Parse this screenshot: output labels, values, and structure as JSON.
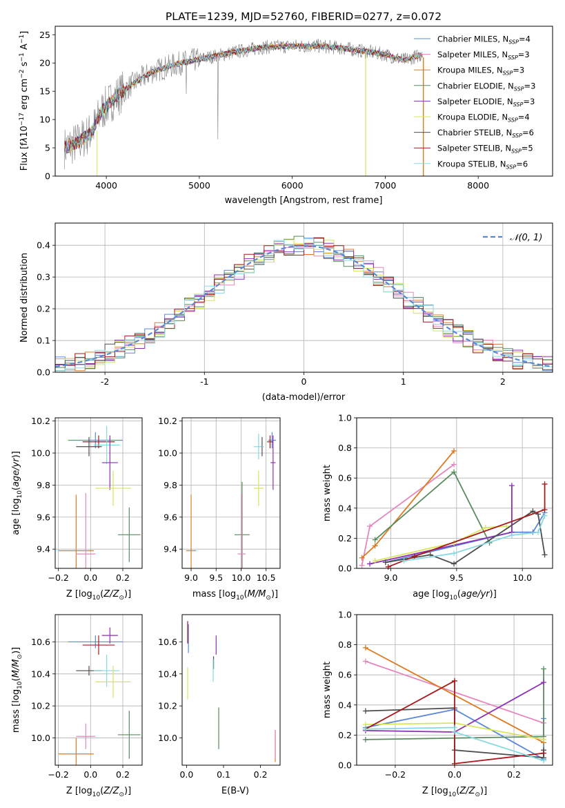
{
  "figure_title": "PLATE=1239, MJD=52760, FIBERID=0277, z=0.072",
  "models": [
    {
      "name": "Chabrier MILES, N",
      "sub": "SSP",
      "suffix": "=4",
      "color": "#5b88d6"
    },
    {
      "name": "Salpeter MILES, N",
      "sub": "SSP",
      "suffix": "=3",
      "color": "#e586bd"
    },
    {
      "name": "Kroupa MILES, N",
      "sub": "SSP",
      "suffix": "=3",
      "color": "#dd7a20"
    },
    {
      "name": "Chabrier ELODIE, N",
      "sub": "SSP",
      "suffix": "=3",
      "color": "#5a8a5e"
    },
    {
      "name": "Salpeter ELODIE, N",
      "sub": "SSP",
      "suffix": "=3",
      "color": "#8d2fb5"
    },
    {
      "name": "Kroupa ELODIE, N",
      "sub": "SSP",
      "suffix": "=4",
      "color": "#d6e55a"
    },
    {
      "name": "Chabrier STELIB, N",
      "sub": "SSP",
      "suffix": "=6",
      "color": "#4c4c4c"
    },
    {
      "name": "Salpeter STELIB, N",
      "sub": "SSP",
      "suffix": "=5",
      "color": "#a6191c"
    },
    {
      "name": "Kroupa STELIB, N",
      "sub": "SSP",
      "suffix": "=6",
      "color": "#86d9e0"
    }
  ],
  "chart_data": [
    {
      "id": "spectrum",
      "type": "line",
      "xlabel": "wavelength [Angstrom, rest frame]",
      "ylabel": "Flux [f",
      "xlim": [
        3450,
        8800
      ],
      "ylim": [
        0,
        26.5
      ],
      "xticks": [
        4000,
        5000,
        6000,
        7000,
        8000
      ],
      "yticks": [
        0,
        5,
        10,
        15,
        20,
        25
      ],
      "continuum": [
        [
          3550,
          5.0
        ],
        [
          3700,
          6.0
        ],
        [
          3850,
          8.0
        ],
        [
          3950,
          11.5
        ],
        [
          4100,
          14.0
        ],
        [
          4300,
          16.5
        ],
        [
          4500,
          18.5
        ],
        [
          4800,
          20.0
        ],
        [
          5100,
          21.0
        ],
        [
          5400,
          22.0
        ],
        [
          5700,
          22.8
        ],
        [
          6000,
          23.0
        ],
        [
          6300,
          23.0
        ],
        [
          6600,
          22.5
        ],
        [
          7000,
          21.5
        ],
        [
          7200,
          20.5
        ],
        [
          7400,
          21.5
        ]
      ],
      "observed_color": "#808080",
      "legend": "upper right"
    },
    {
      "id": "residuals",
      "type": "step",
      "xlabel": "(data-model)/error",
      "ylabel": "Normed distribution",
      "xlim": [
        -2.5,
        2.5
      ],
      "ylim": [
        0,
        0.47
      ],
      "xticks": [
        -2,
        -1,
        0,
        1,
        2
      ],
      "yticks": [
        0.0,
        0.1,
        0.2,
        0.3,
        0.4
      ],
      "gaussian_label": "𝒩(0, 1)",
      "gaussian_color": "#5b88d6",
      "bin_width": 0.1,
      "legend": "upper right",
      "grid": true
    },
    {
      "id": "age-vs-Z",
      "type": "errorbar",
      "xlabel": "Z [log",
      "ylabel": "age  [log",
      "xlim": [
        -0.22,
        0.32
      ],
      "ylim": [
        9.28,
        10.22
      ],
      "xticks": [
        -0.2,
        0.0,
        0.2
      ],
      "yticks": [
        9.4,
        9.6,
        9.8,
        10.0,
        10.2
      ],
      "points": [
        {
          "x": 0.03,
          "xerr": 0.17,
          "y": 10.08,
          "yerr": 0.05
        },
        {
          "x": 0.05,
          "xerr": 0.1,
          "y": 10.07,
          "yerr": 0.04
        },
        {
          "x": -0.01,
          "xerr": 0.08,
          "y": 10.04,
          "yerr": 0.06
        },
        {
          "x": 0.1,
          "xerr": 0.08,
          "y": 10.05,
          "yerr": 0.12
        },
        {
          "x": 0.12,
          "xerr": 0.05,
          "y": 9.94,
          "yerr": 0.17
        },
        {
          "x": 0.14,
          "xerr": 0.11,
          "y": 9.78,
          "yerr": 0.11
        },
        {
          "x": 0.24,
          "xerr": 0.07,
          "y": 9.49,
          "yerr": 0.17
        },
        {
          "x": -0.09,
          "xerr": 0.11,
          "y": 9.39,
          "yerr": 0.35
        },
        {
          "x": -0.03,
          "xerr": 0.06,
          "y": 9.37,
          "yerr": 0.38
        }
      ],
      "point_colors": [
        "#5b88d6",
        "#a6191c",
        "#4c4c4c",
        "#86d9e0",
        "#8d2fb5",
        "#d6e55a",
        "#5a8a5e",
        "#dd7a20",
        "#e586bd"
      ],
      "grid": true
    },
    {
      "id": "age-vs-mass",
      "type": "errorbar",
      "xlabel": "mass [log",
      "ylabel": "",
      "xlim": [
        8.82,
        10.78
      ],
      "ylim": [
        9.28,
        10.22
      ],
      "xticks": [
        9.0,
        9.5,
        10.0,
        10.5
      ],
      "yticks": [
        9.4,
        9.6,
        9.8,
        10.0,
        10.2
      ],
      "points": [
        {
          "x": 10.62,
          "xerr": 0.08,
          "y": 10.08,
          "yerr": 0.05
        },
        {
          "x": 10.58,
          "xerr": 0.06,
          "y": 10.07,
          "yerr": 0.04
        },
        {
          "x": 10.42,
          "xerr": 0.03,
          "y": 10.04,
          "yerr": 0.06
        },
        {
          "x": 10.35,
          "xerr": 0.1,
          "y": 10.04,
          "yerr": 0.08
        },
        {
          "x": 10.64,
          "xerr": 0.05,
          "y": 9.94,
          "yerr": 0.17
        },
        {
          "x": 10.35,
          "xerr": 0.1,
          "y": 9.78,
          "yerr": 0.11
        },
        {
          "x": 10.02,
          "xerr": 0.15,
          "y": 9.49,
          "yerr": 0.33
        },
        {
          "x": 9.0,
          "xerr": 0.1,
          "y": 9.39,
          "yerr": 0.35
        },
        {
          "x": 10.01,
          "xerr": 0.08,
          "y": 9.37,
          "yerr": 0.38
        }
      ],
      "point_colors": [
        "#5b88d6",
        "#a6191c",
        "#4c4c4c",
        "#86d9e0",
        "#8d2fb5",
        "#d6e55a",
        "#5a8a5e",
        "#dd7a20",
        "#e586bd"
      ],
      "grid": true
    },
    {
      "id": "weight-vs-age",
      "type": "line",
      "xlabel": "age  [log",
      "ylabel": "mass weight",
      "xlim": [
        8.74,
        10.23
      ],
      "ylim": [
        0,
        1
      ],
      "xticks": [
        9.0,
        9.5,
        10.0
      ],
      "yticks": [
        0.0,
        0.2,
        0.4,
        0.6,
        0.8,
        1.0
      ],
      "series": [
        {
          "x": [
            8.96,
            9.92,
            10.08,
            10.17
          ],
          "y": [
            0.04,
            0.24,
            0.24,
            0.37
          ]
        },
        {
          "x": [
            8.78,
            8.84,
            9.48
          ],
          "y": [
            0.02,
            0.28,
            0.69
          ]
        },
        {
          "x": [
            8.78,
            8.88,
            9.48
          ],
          "y": [
            0.07,
            0.15,
            0.78
          ]
        },
        {
          "x": [
            8.88,
            9.48,
            9.75
          ],
          "y": [
            0.19,
            0.64,
            0.17
          ]
        },
        {
          "x": [
            8.84,
            9.92,
            9.92
          ],
          "y": [
            0.03,
            0.24,
            0.55
          ]
        },
        {
          "x": [
            8.88,
            9.48,
            9.72,
            9.88
          ],
          "y": [
            0.05,
            0.17,
            0.27,
            0.28
          ]
        },
        {
          "x": [
            8.96,
            9.3,
            9.48,
            10.08,
            10.12,
            10.17
          ],
          "y": [
            0.04,
            0.09,
            0.03,
            0.38,
            0.36,
            0.09
          ]
        },
        {
          "x": [
            8.98,
            9.18,
            10.17,
            10.17
          ],
          "y": [
            0.01,
            0.08,
            0.39,
            0.56
          ]
        },
        {
          "x": [
            9.1,
            9.48,
            9.92,
            10.12,
            10.17
          ],
          "y": [
            0.05,
            0.1,
            0.22,
            0.24,
            0.35
          ]
        }
      ],
      "grid": true
    },
    {
      "id": "mass-vs-Z",
      "type": "errorbar",
      "xlabel": "Z [log",
      "ylabel": "mass [log",
      "xlim": [
        -0.22,
        0.32
      ],
      "ylim": [
        9.83,
        10.77
      ],
      "xticks": [
        -0.2,
        0.0,
        0.2
      ],
      "yticks": [
        10.0,
        10.2,
        10.4,
        10.6
      ],
      "points": [
        {
          "x": 0.03,
          "xerr": 0.17,
          "y": 10.6,
          "yerr": 0.04
        },
        {
          "x": 0.05,
          "xerr": 0.1,
          "y": 10.58,
          "yerr": 0.06
        },
        {
          "x": -0.01,
          "xerr": 0.08,
          "y": 10.42,
          "yerr": 0.03
        },
        {
          "x": 0.1,
          "xerr": 0.08,
          "y": 10.42,
          "yerr": 0.1
        },
        {
          "x": 0.12,
          "xerr": 0.05,
          "y": 10.64,
          "yerr": 0.05
        },
        {
          "x": 0.14,
          "xerr": 0.11,
          "y": 10.35,
          "yerr": 0.1
        },
        {
          "x": 0.24,
          "xerr": 0.07,
          "y": 10.02,
          "yerr": 0.15
        },
        {
          "x": -0.09,
          "xerr": 0.11,
          "y": 9.9,
          "yerr": 0.1
        },
        {
          "x": -0.03,
          "xerr": 0.06,
          "y": 10.01,
          "yerr": 0.08
        }
      ],
      "point_colors": [
        "#5b88d6",
        "#a6191c",
        "#4c4c4c",
        "#86d9e0",
        "#8d2fb5",
        "#d6e55a",
        "#5a8a5e",
        "#dd7a20",
        "#e586bd"
      ],
      "grid": true
    },
    {
      "id": "mass-vs-ebv",
      "type": "errorbar",
      "xlabel": "E(B-V)",
      "ylabel": "",
      "xlim": [
        -0.012,
        0.253
      ],
      "ylim": [
        9.83,
        10.77
      ],
      "xticks": [
        0.0,
        0.1,
        0.2
      ],
      "yticks": [
        10.0,
        10.2,
        10.4,
        10.6
      ],
      "points": [
        {
          "x": 0.005,
          "xerr": 0,
          "y": 10.62,
          "yerr": 0.09
        },
        {
          "x": 0.003,
          "xerr": 0,
          "y": 10.66,
          "yerr": 0.07
        },
        {
          "x": 0.073,
          "xerr": 0,
          "y": 10.47,
          "yerr": 0.04
        },
        {
          "x": 0.072,
          "xerr": 0,
          "y": 10.42,
          "yerr": 0.07
        },
        {
          "x": 0.08,
          "xerr": 0,
          "y": 10.58,
          "yerr": 0.06
        },
        {
          "x": 0.003,
          "xerr": 0,
          "y": 10.34,
          "yerr": 0.1
        },
        {
          "x": 0.087,
          "xerr": 0,
          "y": 10.06,
          "yerr": 0.13
        },
        {
          "x": 0.24,
          "xerr": 0,
          "y": 9.95,
          "yerr": 0.1
        },
        {
          "x": 0.24,
          "xerr": 0,
          "y": 9.96,
          "yerr": 0.09
        }
      ],
      "point_colors": [
        "#5b88d6",
        "#a6191c",
        "#4c4c4c",
        "#86d9e0",
        "#8d2fb5",
        "#d6e55a",
        "#5a8a5e",
        "#dd7a20",
        "#e586bd"
      ],
      "grid": false
    },
    {
      "id": "weight-vs-Z",
      "type": "line",
      "xlabel": "Z [log",
      "ylabel": "mass weight",
      "xlim": [
        -0.33,
        0.33
      ],
      "ylim": [
        0,
        1
      ],
      "xticks": [
        -0.2,
        0.0,
        0.2
      ],
      "yticks": [
        0.0,
        0.2,
        0.4,
        0.6,
        0.8,
        1.0
      ],
      "series": [
        {
          "x": [
            -0.3,
            0.0,
            0.3,
            0.3
          ],
          "y": [
            0.25,
            0.37,
            0.04,
            0.31
          ]
        },
        {
          "x": [
            -0.3,
            0.3
          ],
          "y": [
            0.69,
            0.28
          ]
        },
        {
          "x": [
            -0.3,
            0.3
          ],
          "y": [
            0.78,
            0.15
          ]
        },
        {
          "x": [
            -0.3,
            0.3,
            0.3
          ],
          "y": [
            0.17,
            0.19,
            0.64
          ]
        },
        {
          "x": [
            -0.3,
            0.0,
            0.3
          ],
          "y": [
            0.23,
            0.22,
            0.55
          ]
        },
        {
          "x": [
            -0.3,
            0.0,
            0.3
          ],
          "y": [
            0.27,
            0.28,
            0.17
          ]
        },
        {
          "x": [
            -0.3,
            0.0,
            0.0,
            0.3,
            0.3
          ],
          "y": [
            0.36,
            0.38,
            0.1,
            0.05,
            0.1
          ]
        },
        {
          "x": [
            -0.3,
            0.0,
            0.0,
            0.3
          ],
          "y": [
            0.24,
            0.56,
            0.01,
            0.08
          ]
        },
        {
          "x": [
            -0.3,
            0.0,
            0.0,
            0.3
          ],
          "y": [
            0.24,
            0.25,
            0.22,
            0.03
          ]
        }
      ],
      "grid": true
    }
  ]
}
